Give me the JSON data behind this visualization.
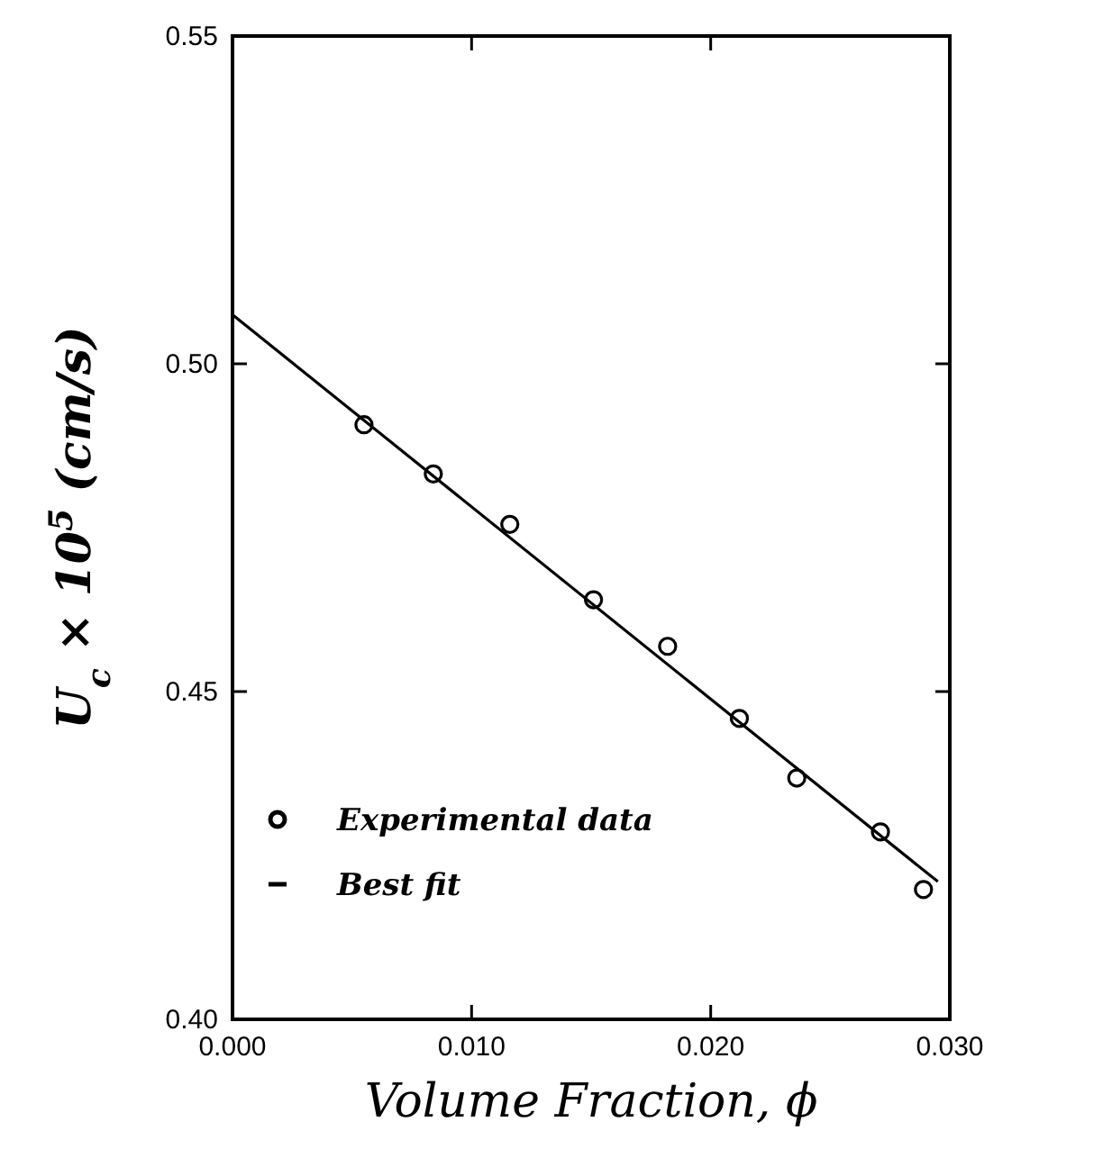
{
  "chart_data": {
    "type": "scatter",
    "xlabel": "Volume Fraction, ϕ",
    "ylabel": "U$_{c}$ × 10$^{5}$ (cm/s)",
    "xlim": [
      0,
      0.03
    ],
    "ylim": [
      0.4,
      0.55
    ],
    "xticks": [
      {
        "value": 0,
        "label": "0.000"
      },
      {
        "value": 0.01,
        "label": "0.010"
      },
      {
        "value": 0.02,
        "label": "0.020"
      },
      {
        "value": 0.03,
        "label": "0.030"
      }
    ],
    "yticks": [
      {
        "value": 0.4,
        "label": "0.40"
      },
      {
        "value": 0.45,
        "label": "0.45"
      },
      {
        "value": 0.5,
        "label": "0.50"
      },
      {
        "value": 0.55,
        "label": "0.55"
      }
    ],
    "legend": "bottom left",
    "grid": false,
    "series": [
      {
        "name": "Experimental data",
        "marker": "circle",
        "color": "#000000",
        "x": [
          0.0055,
          0.0084,
          0.0116,
          0.0151,
          0.0182,
          0.0212,
          0.0236,
          0.0271,
          0.0289
        ],
        "values": [
          0.4907,
          0.4832,
          0.4755,
          0.464,
          0.4569,
          0.4459,
          0.4368,
          0.4286,
          0.4198
        ]
      },
      {
        "name": "Best fit",
        "type": "line",
        "marker": "none",
        "line_style": "solid",
        "color": "#000000",
        "x": [
          0,
          0.0295
        ],
        "values": [
          0.5075,
          0.421
        ]
      }
    ]
  }
}
